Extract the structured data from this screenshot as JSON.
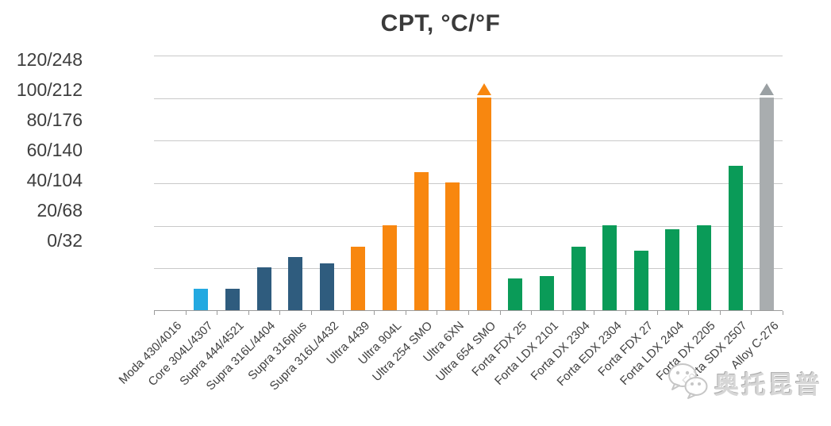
{
  "title": "CPT, °C/°F",
  "watermark": {
    "text": "奥托昆普",
    "icon": "wechat-bubbles-icon",
    "color": "#c6c6c6"
  },
  "palette": {
    "core_light_blue": "#23a9e1",
    "supra_dark_blue": "#2f5c7e",
    "ultra_orange": "#f8870f",
    "forta_green": "#0a9b58",
    "alloy_gray": "#a9adaf",
    "alloy_arrow_gray": "#9aa0a3",
    "gridline": "#c9c9c9",
    "axis": "#9b9b9b",
    "text": "#3e3e3e"
  },
  "chart_data": {
    "type": "bar",
    "title": "CPT, °C/°F",
    "xlabel": "",
    "ylabel": "CPT, °C/°F",
    "ylim": [
      0,
      120
    ],
    "grid": true,
    "legend": false,
    "gridline_values": [
      120,
      100,
      80,
      60,
      40,
      20
    ],
    "y_tick_labels": [
      "120/248",
      "100/212",
      "80/176",
      "60/140",
      "40/104",
      "20/68",
      "0/32"
    ],
    "categories": [
      "Moda 430/4016",
      "Core 304L/4307",
      "Supra 444/4521",
      "Supra 316L/4404",
      "Supra 316plus",
      "Supra 316L/4432",
      "Ultra 4439",
      "Ultra 904L",
      "Ultra 254 SMO",
      "Ultra 6XN",
      "Ultra 654 SMO",
      "Forta FDX 25",
      "Forta LDX 2101",
      "Forta DX 2304",
      "Forta EDX 2304",
      "Forta FDX 27",
      "Forta LDX 2404",
      "Forta DX 2205",
      "Forta SDX 2507",
      "Alloy C-276"
    ],
    "bars": [
      {
        "label": "Moda 430/4016",
        "value": 0,
        "color": "#cccccc",
        "exceeds_scale": false
      },
      {
        "label": "Core 304L/4307",
        "value": 10,
        "color": "#23a9e1",
        "exceeds_scale": false
      },
      {
        "label": "Supra 444/4521",
        "value": 10,
        "color": "#2f5c7e",
        "exceeds_scale": false
      },
      {
        "label": "Supra 316L/4404",
        "value": 20,
        "color": "#2f5c7e",
        "exceeds_scale": false
      },
      {
        "label": "Supra 316plus",
        "value": 25,
        "color": "#2f5c7e",
        "exceeds_scale": false
      },
      {
        "label": "Supra 316L/4432",
        "value": 22,
        "color": "#2f5c7e",
        "exceeds_scale": false
      },
      {
        "label": "Ultra 4439",
        "value": 30,
        "color": "#f8870f",
        "exceeds_scale": false
      },
      {
        "label": "Ultra 904L",
        "value": 40,
        "color": "#f8870f",
        "exceeds_scale": false
      },
      {
        "label": "Ultra 254 SMO",
        "value": 65,
        "color": "#f8870f",
        "exceeds_scale": false
      },
      {
        "label": "Ultra 6XN",
        "value": 60,
        "color": "#f8870f",
        "exceeds_scale": false
      },
      {
        "label": "Ultra 654 SMO",
        "value": 100,
        "color": "#f8870f",
        "exceeds_scale": true,
        "display_hint": ">100",
        "arrow_color": "#f8870f"
      },
      {
        "label": "Forta FDX 25",
        "value": 15,
        "color": "#0a9b58",
        "exceeds_scale": false
      },
      {
        "label": "Forta LDX 2101",
        "value": 16,
        "color": "#0a9b58",
        "exceeds_scale": false
      },
      {
        "label": "Forta DX 2304",
        "value": 30,
        "color": "#0a9b58",
        "exceeds_scale": false
      },
      {
        "label": "Forta EDX 2304",
        "value": 40,
        "color": "#0a9b58",
        "exceeds_scale": false
      },
      {
        "label": "Forta FDX 27",
        "value": 28,
        "color": "#0a9b58",
        "exceeds_scale": false
      },
      {
        "label": "Forta LDX 2404",
        "value": 38,
        "color": "#0a9b58",
        "exceeds_scale": false
      },
      {
        "label": "Forta DX 2205",
        "value": 40,
        "color": "#0a9b58",
        "exceeds_scale": false
      },
      {
        "label": "Forta SDX 2507",
        "value": 68,
        "color": "#0a9b58",
        "exceeds_scale": false
      },
      {
        "label": "Alloy C-276",
        "value": 100,
        "color": "#a9adaf",
        "exceeds_scale": true,
        "display_hint": ">100",
        "arrow_color": "#9aa0a3"
      }
    ]
  }
}
